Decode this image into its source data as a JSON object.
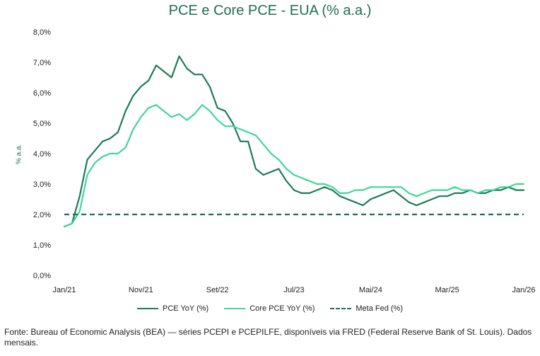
{
  "title": "PCE e Core PCE - EUA (% a.a.)",
  "source_note": "Fonte: Bureau of Economic Analysis (BEA) — séries PCEPI e PCEPILFE, disponíveis via FRED (Federal Reserve Bank of St. Louis). Dados mensais.",
  "legend": {
    "pce": "PCE YoY (%)",
    "core": "Core PCE YoY (%)",
    "meta": "Meta Fed (%)"
  },
  "colors": {
    "pce": "#1f7a57",
    "core": "#3fd69a",
    "meta": "#1f6f52"
  },
  "chart_data": {
    "type": "line",
    "title": "PCE e Core PCE - EUA (% a.a.)",
    "xlabel": "",
    "ylabel": "% a.a.",
    "ylim": [
      0,
      8
    ],
    "ytick_labels": [
      "0,0%",
      "1,0%",
      "2,0%",
      "3,0%",
      "4,0%",
      "5,0%",
      "6,0%",
      "7,0%",
      "8,0%"
    ],
    "x_tick_labels": [
      "Jan/21",
      "Nov/21",
      "Set/22",
      "Jul/23",
      "Mai/24",
      "Mar/25",
      "Jan/26"
    ],
    "x_tick_months": [
      0,
      10,
      20,
      30,
      40,
      50,
      60
    ],
    "x_range_months": [
      0,
      60
    ],
    "series": [
      {
        "name": "PCE YoY (%)",
        "style": "solid",
        "month": [
          0,
          1,
          2,
          3,
          4,
          5,
          6,
          7,
          8,
          9,
          10,
          11,
          12,
          13,
          14,
          15,
          16,
          17,
          18,
          19,
          20,
          21,
          22,
          23,
          24,
          25,
          26,
          27,
          28,
          29,
          30,
          31,
          32,
          33,
          34,
          35,
          36,
          37,
          38,
          39,
          40,
          41,
          42,
          43,
          44,
          45,
          46,
          47,
          48,
          49,
          50,
          51,
          52,
          53,
          54,
          55,
          56,
          57,
          58,
          59,
          60
        ],
        "values": [
          1.6,
          1.7,
          2.6,
          3.8,
          4.1,
          4.4,
          4.5,
          4.7,
          5.4,
          5.9,
          6.2,
          6.4,
          6.9,
          6.7,
          6.5,
          7.2,
          6.8,
          6.6,
          6.6,
          6.2,
          5.5,
          5.4,
          5.0,
          4.4,
          4.4,
          3.5,
          3.3,
          3.4,
          3.5,
          3.1,
          2.8,
          2.7,
          2.7,
          2.8,
          2.9,
          2.8,
          2.6,
          2.5,
          2.4,
          2.3,
          2.5,
          2.6,
          2.7,
          2.8,
          2.6,
          2.4,
          2.3,
          2.4,
          2.5,
          2.6,
          2.6,
          2.7,
          2.7,
          2.8,
          2.7,
          2.7,
          2.8,
          2.8,
          2.9,
          2.8,
          2.8
        ]
      },
      {
        "name": "Core PCE YoY (%)",
        "style": "solid",
        "month": [
          0,
          1,
          2,
          3,
          4,
          5,
          6,
          7,
          8,
          9,
          10,
          11,
          12,
          13,
          14,
          15,
          16,
          17,
          18,
          19,
          20,
          21,
          22,
          23,
          24,
          25,
          26,
          27,
          28,
          29,
          30,
          31,
          32,
          33,
          34,
          35,
          36,
          37,
          38,
          39,
          40,
          41,
          42,
          43,
          44,
          45,
          46,
          47,
          48,
          49,
          50,
          51,
          52,
          53,
          54,
          55,
          56,
          57,
          58,
          59,
          60
        ],
        "values": [
          1.6,
          1.7,
          2.1,
          3.3,
          3.7,
          3.9,
          4.0,
          4.0,
          4.2,
          4.8,
          5.2,
          5.5,
          5.6,
          5.4,
          5.2,
          5.3,
          5.1,
          5.3,
          5.6,
          5.4,
          5.1,
          4.9,
          4.9,
          4.8,
          4.7,
          4.6,
          4.3,
          4.0,
          3.8,
          3.5,
          3.3,
          3.2,
          3.1,
          3.0,
          3.0,
          2.9,
          2.7,
          2.7,
          2.8,
          2.8,
          2.9,
          2.9,
          2.9,
          2.9,
          2.9,
          2.7,
          2.6,
          2.7,
          2.8,
          2.8,
          2.8,
          2.9,
          2.8,
          2.8,
          2.7,
          2.8,
          2.8,
          2.9,
          2.9,
          3.0,
          3.0
        ]
      },
      {
        "name": "Meta Fed (%)",
        "style": "dashed",
        "month": [
          0,
          60
        ],
        "values": [
          2.0,
          2.0
        ]
      }
    ],
    "grid": false,
    "legend_position": "bottom-center"
  }
}
